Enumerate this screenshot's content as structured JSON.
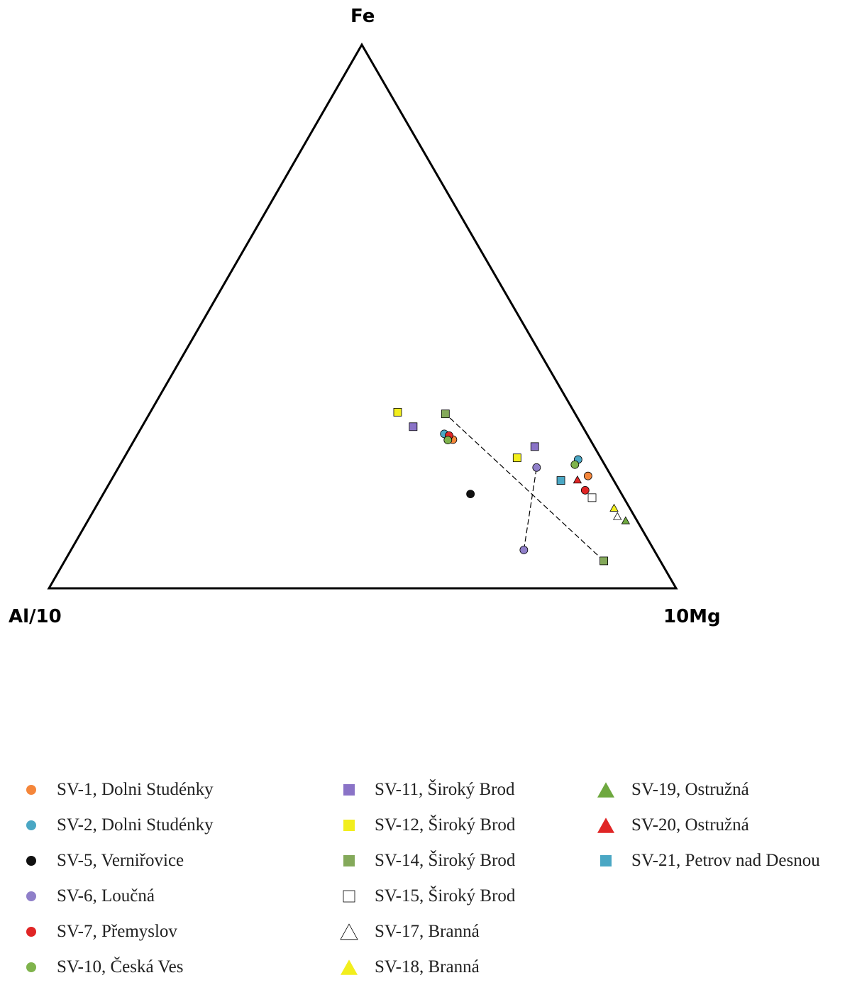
{
  "chart_data": {
    "type": "scatter",
    "subtype": "ternary",
    "apex_labels": {
      "top": "Fe",
      "bottom_left": "Al/10",
      "bottom_right": "10Mg"
    },
    "tie_lines": [
      {
        "from": [
          1.0,
          0.56,
          9.55
        ],
        "to": [
          1.0,
          1.55,
          2.28
        ]
      },
      {
        "from": [
          1.0,
          0.34,
          3.48
        ],
        "to": [
          1.0,
          2.0,
          6.0
        ]
      }
    ],
    "series": [
      {
        "name": "SV-1, Dolni Studénky",
        "marker": "circle",
        "color": "#f5863a",
        "points": [
          {
            "a": 1.0,
            "b": 1.25,
            "c": 2.32
          },
          {
            "a": 1.0,
            "b": 5.6,
            "c": 20.5
          }
        ]
      },
      {
        "name": "SV-2, Dolni Studénky",
        "marker": "circle",
        "color": "#4aa7c4",
        "points": [
          {
            "a": 1.0,
            "b": 1.25,
            "c": 2.15
          },
          {
            "a": 1.0,
            "b": 6.3,
            "c": 19.3
          }
        ]
      },
      {
        "name": "SV-5, Verniřovice",
        "marker": "circle",
        "color": "#111111",
        "points": [
          {
            "a": 1.0,
            "b": 0.72,
            "c": 2.43
          }
        ]
      },
      {
        "name": "SV-6, Loučná",
        "marker": "circle",
        "color": "#8f7fc9",
        "points": [
          {
            "a": 1.0,
            "b": 0.34,
            "c": 3.48
          },
          {
            "a": 1.0,
            "b": 2.0,
            "c": 6.0
          }
        ]
      },
      {
        "name": "SV-7, Přemyslov",
        "marker": "circle",
        "color": "#e02525",
        "points": [
          {
            "a": 1.0,
            "b": 1.27,
            "c": 2.25
          },
          {
            "a": 1.0,
            "b": 3.3,
            "c": 14.0
          }
        ]
      },
      {
        "name": "SV-10, Česká Ves",
        "marker": "circle",
        "color": "#7fb34c",
        "points": [
          {
            "a": 1.0,
            "b": 1.2,
            "c": 2.2
          },
          {
            "a": 1.0,
            "b": 4.8,
            "c": 15.3
          }
        ]
      },
      {
        "name": "SV-11, Široký Brod",
        "marker": "square",
        "color": "#8a73c7",
        "points": [
          {
            "a": 1.0,
            "b": 1.1,
            "c": 1.6
          },
          {
            "a": 1.0,
            "b": 2.75,
            "c": 6.8
          }
        ]
      },
      {
        "name": "SV-12, Široký Brod",
        "marker": "square",
        "color": "#f2ee1d",
        "points": [
          {
            "a": 1.0,
            "b": 1.15,
            "c": 1.4
          },
          {
            "a": 1.0,
            "b": 1.8,
            "c": 4.7
          }
        ]
      },
      {
        "name": "SV-14, Široký Brod",
        "marker": "square",
        "color": "#84a95a",
        "points": [
          {
            "a": 1.0,
            "b": 0.56,
            "c": 9.55
          },
          {
            "a": 1.0,
            "b": 1.55,
            "c": 2.28
          }
        ]
      },
      {
        "name": "SV-15, Široký Brod",
        "marker": "square",
        "color": "#ffffff",
        "points": [
          {
            "a": 1.0,
            "b": 3.3,
            "c": 15.5
          }
        ]
      },
      {
        "name": "SV-17, Branná",
        "marker": "triangle",
        "color": "#ffffff",
        "points": [
          {
            "a": 1.0,
            "b": 4.9,
            "c": 31.0
          }
        ]
      },
      {
        "name": "SV-18, Branná",
        "marker": "triangle",
        "color": "#f2ee1d",
        "points": [
          {
            "a": 1.0,
            "b": 6.0,
            "c": 33.5
          }
        ]
      },
      {
        "name": "SV-19, Ostružná",
        "marker": "triangle",
        "color": "#6ea83f",
        "points": [
          {
            "a": 1.0,
            "b": 7.0,
            "c": 48.0
          }
        ]
      },
      {
        "name": "SV-20, Ostružná",
        "marker": "triangle",
        "color": "#e02525",
        "points": [
          {
            "a": 1.0,
            "b": 3.5,
            "c": 13.0
          }
        ]
      },
      {
        "name": "SV-21, Petrov nad Desnou",
        "marker": "square",
        "color": "#4aa7c4",
        "points": [
          {
            "a": 1.0,
            "b": 2.35,
            "c": 8.5
          }
        ]
      }
    ],
    "legend_columns": [
      [
        "SV-1, Dolni Studénky",
        "SV-2, Dolni Studénky",
        "SV-5, Verniřovice",
        "SV-6, Loučná",
        "SV-7, Přemyslov",
        "SV-10, Česká Ves"
      ],
      [
        "SV-11, Široký Brod",
        "SV-12, Široký Brod",
        "SV-14, Široký Brod",
        "SV-15, Široký Brod",
        "SV-17, Branná",
        "SV-18, Branná"
      ],
      [
        "SV-19, Ostružná",
        "SV-20, Ostružná",
        "SV-21, Petrov nad Desnou"
      ]
    ],
    "legend_placement": "bottom",
    "grid": false
  }
}
